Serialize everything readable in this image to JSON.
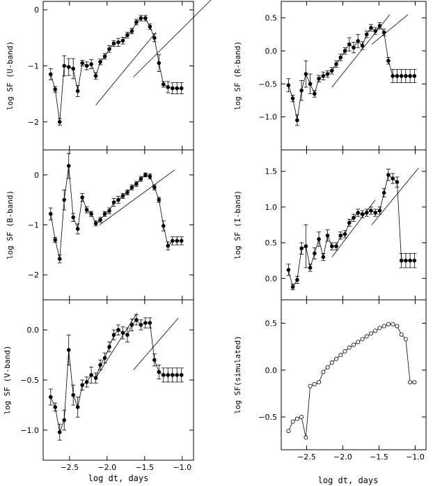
{
  "chart_data": [
    {
      "id": "u",
      "type": "line",
      "ylabel": "log SF (U-band)",
      "xlabel": "",
      "xlim": [
        -2.85,
        -0.85
      ],
      "ylim": [
        -2.5,
        0.15
      ],
      "xticks": [
        -2.5,
        -2.0,
        -1.5,
        -1.0
      ],
      "xticklabels": [],
      "yticks": [
        0,
        -1,
        -2
      ],
      "yticklabels": [
        "0",
        "−1",
        "−2"
      ],
      "marker": "filled",
      "x": [
        -2.75,
        -2.69,
        -2.63,
        -2.57,
        -2.51,
        -2.45,
        -2.39,
        -2.33,
        -2.27,
        -2.21,
        -2.15,
        -2.09,
        -2.03,
        -1.97,
        -1.91,
        -1.85,
        -1.79,
        -1.73,
        -1.67,
        -1.61,
        -1.55,
        -1.49,
        -1.43,
        -1.37,
        -1.31,
        -1.25,
        -1.19,
        -1.13,
        -1.07,
        -1.01
      ],
      "y": [
        -1.15,
        -1.42,
        -2.0,
        -1.0,
        -1.02,
        -1.05,
        -1.45,
        -0.95,
        -1.0,
        -0.97,
        -1.18,
        -0.93,
        -0.83,
        -0.7,
        -0.6,
        -0.58,
        -0.55,
        -0.45,
        -0.38,
        -0.22,
        -0.15,
        -0.15,
        -0.3,
        -0.5,
        -0.95,
        -1.33,
        -1.38,
        -1.4,
        -1.4,
        -1.4
      ],
      "yerr": [
        0.1,
        0.05,
        0.06,
        0.18,
        0.15,
        0.18,
        0.1,
        0.05,
        0.07,
        0.08,
        0.06,
        0.05,
        0.05,
        0.06,
        0.05,
        0.07,
        0.06,
        0.05,
        0.05,
        0.05,
        0.05,
        0.05,
        0.05,
        0.07,
        0.15,
        0.05,
        0.1,
        0.1,
        0.1,
        0.1
      ],
      "trends": [
        [
          -2.15,
          -1.35,
          -1.7,
          -0.4
        ],
        [
          -1.65,
          -0.6,
          -1.2,
          0.2
        ]
      ]
    },
    {
      "id": "b",
      "type": "line",
      "ylabel": "log SF (B-band)",
      "xlabel": "",
      "xlim": [
        -2.85,
        -0.85
      ],
      "ylim": [
        -2.5,
        0.5
      ],
      "xticks": [
        -2.5,
        -2.0,
        -1.5,
        -1.0
      ],
      "xticklabels": [],
      "yticks": [
        0,
        -1,
        -2
      ],
      "yticklabels": [
        "0",
        "−1",
        "−2"
      ],
      "marker": "filled",
      "x": [
        -2.75,
        -2.69,
        -2.63,
        -2.57,
        -2.51,
        -2.45,
        -2.39,
        -2.33,
        -2.27,
        -2.21,
        -2.15,
        -2.09,
        -2.03,
        -1.97,
        -1.91,
        -1.85,
        -1.79,
        -1.73,
        -1.67,
        -1.61,
        -1.55,
        -1.49,
        -1.43,
        -1.37,
        -1.31,
        -1.25,
        -1.19,
        -1.13,
        -1.07,
        -1.01
      ],
      "y": [
        -0.78,
        -1.3,
        -1.68,
        -0.5,
        0.18,
        -0.85,
        -1.08,
        -0.45,
        -0.7,
        -0.78,
        -0.97,
        -0.9,
        -0.78,
        -0.72,
        -0.55,
        -0.5,
        -0.42,
        -0.35,
        -0.25,
        -0.18,
        -0.08,
        0.0,
        -0.03,
        -0.25,
        -0.5,
        -1.02,
        -1.42,
        -1.32,
        -1.32,
        -1.32
      ],
      "yerr": [
        0.12,
        0.05,
        0.08,
        0.2,
        0.25,
        0.08,
        0.1,
        0.08,
        0.06,
        0.05,
        0.05,
        0.05,
        0.05,
        0.06,
        0.08,
        0.07,
        0.05,
        0.05,
        0.05,
        0.05,
        0.05,
        0.04,
        0.05,
        0.05,
        0.05,
        0.1,
        0.08,
        0.08,
        0.08,
        0.08
      ],
      "trends": [
        [
          -2.1,
          -1.1,
          -1.0,
          0.1
        ]
      ]
    },
    {
      "id": "v",
      "type": "line",
      "ylabel": "log SF (V-band)",
      "xlabel": "log dt, days",
      "xlim": [
        -2.85,
        -0.85
      ],
      "ylim": [
        -1.3,
        0.3
      ],
      "xticks": [
        -2.5,
        -2.0,
        -1.5,
        -1.0
      ],
      "xticklabels": [
        "−2.5",
        "−2.0",
        "−1.5",
        "−1.0"
      ],
      "yticks": [
        0,
        -0.5,
        -1.0
      ],
      "yticklabels": [
        "0.0",
        "−0.5",
        "−1.0"
      ],
      "marker": "filled",
      "x": [
        -2.75,
        -2.69,
        -2.63,
        -2.57,
        -2.51,
        -2.45,
        -2.39,
        -2.33,
        -2.27,
        -2.21,
        -2.15,
        -2.09,
        -2.03,
        -1.97,
        -1.91,
        -1.85,
        -1.79,
        -1.73,
        -1.67,
        -1.61,
        -1.55,
        -1.49,
        -1.43,
        -1.37,
        -1.31,
        -1.25,
        -1.19,
        -1.13,
        -1.07,
        -1.01
      ],
      "y": [
        -0.67,
        -0.77,
        -1.02,
        -0.9,
        -0.2,
        -0.65,
        -0.77,
        -0.55,
        -0.52,
        -0.45,
        -0.48,
        -0.35,
        -0.28,
        -0.17,
        -0.05,
        0.0,
        -0.03,
        -0.05,
        0.05,
        0.1,
        0.05,
        0.07,
        0.07,
        -0.3,
        -0.42,
        -0.45,
        -0.45,
        -0.45,
        -0.45,
        -0.45
      ],
      "yerr": [
        0.08,
        0.04,
        0.08,
        0.1,
        0.15,
        0.1,
        0.1,
        0.05,
        0.05,
        0.08,
        0.05,
        0.05,
        0.05,
        0.05,
        0.05,
        0.05,
        0.06,
        0.07,
        0.06,
        0.05,
        0.05,
        0.05,
        0.05,
        0.06,
        0.07,
        0.07,
        0.07,
        0.07,
        0.07,
        0.07
      ],
      "trends": [
        [
          -2.15,
          -1.6,
          -0.48,
          0.17
        ],
        [
          -1.65,
          -1.05,
          -0.4,
          0.12
        ]
      ]
    },
    {
      "id": "r",
      "type": "line",
      "ylabel": "log SF (R-band)",
      "xlabel": "",
      "xlim": [
        -2.85,
        -0.85
      ],
      "ylim": [
        -1.5,
        0.75
      ],
      "xticks": [
        -2.5,
        -2.0,
        -1.5,
        -1.0
      ],
      "xticklabels": [],
      "yticks": [
        0.5,
        0,
        -0.5,
        -1.0
      ],
      "yticklabels": [
        "0.5",
        "0.0",
        "−0.5",
        "−1.0"
      ],
      "marker": "filled",
      "x": [
        -2.75,
        -2.69,
        -2.63,
        -2.57,
        -2.51,
        -2.45,
        -2.39,
        -2.33,
        -2.27,
        -2.21,
        -2.15,
        -2.09,
        -2.03,
        -1.97,
        -1.91,
        -1.85,
        -1.79,
        -1.73,
        -1.67,
        -1.61,
        -1.55,
        -1.49,
        -1.43,
        -1.37,
        -1.31,
        -1.25,
        -1.19,
        -1.13,
        -1.07,
        -1.01
      ],
      "y": [
        -0.52,
        -0.72,
        -1.05,
        -0.6,
        -0.35,
        -0.5,
        -0.65,
        -0.42,
        -0.38,
        -0.35,
        -0.3,
        -0.2,
        -0.1,
        0.0,
        0.1,
        0.05,
        0.15,
        0.08,
        0.25,
        0.35,
        0.3,
        0.38,
        0.28,
        -0.15,
        -0.38,
        -0.38,
        -0.38,
        -0.38,
        -0.38,
        -0.38
      ],
      "yerr": [
        0.1,
        0.05,
        0.08,
        0.15,
        0.2,
        0.15,
        0.05,
        0.05,
        0.06,
        0.05,
        0.05,
        0.05,
        0.05,
        0.05,
        0.1,
        0.08,
        0.1,
        0.06,
        0.05,
        0.05,
        0.05,
        0.05,
        0.05,
        0.05,
        0.1,
        0.1,
        0.1,
        0.1,
        0.1,
        0.1
      ],
      "trends": [
        [
          -2.15,
          -1.35,
          -0.55,
          0.55
        ],
        [
          -1.6,
          -1.1,
          0.1,
          0.55
        ]
      ]
    },
    {
      "id": "i",
      "type": "line",
      "ylabel": "log SF (I-band)",
      "xlabel": "",
      "xlim": [
        -2.85,
        -0.85
      ],
      "ylim": [
        -0.3,
        1.8
      ],
      "xticks": [
        -2.5,
        -2.0,
        -1.5,
        -1.0
      ],
      "xticklabels": [],
      "yticks": [
        1.5,
        1.0,
        0.5,
        0.0
      ],
      "yticklabels": [
        "1.5",
        "1.0",
        "0.5",
        "0.0"
      ],
      "marker": "filled",
      "x": [
        -2.75,
        -2.69,
        -2.63,
        -2.57,
        -2.51,
        -2.45,
        -2.39,
        -2.33,
        -2.27,
        -2.21,
        -2.15,
        -2.09,
        -2.03,
        -1.97,
        -1.91,
        -1.85,
        -1.79,
        -1.73,
        -1.67,
        -1.61,
        -1.55,
        -1.49,
        -1.43,
        -1.37,
        -1.31,
        -1.25,
        -1.19,
        -1.13,
        -1.07,
        -1.01
      ],
      "y": [
        0.12,
        -0.12,
        -0.02,
        0.42,
        0.45,
        0.15,
        0.35,
        0.55,
        0.3,
        0.6,
        0.45,
        0.45,
        0.6,
        0.62,
        0.78,
        0.85,
        0.92,
        0.9,
        0.92,
        0.95,
        0.92,
        0.95,
        1.2,
        1.45,
        1.4,
        1.35,
        0.25,
        0.25,
        0.25,
        0.25
      ],
      "yerr": [
        0.08,
        0.04,
        0.05,
        0.08,
        0.3,
        0.05,
        0.08,
        0.1,
        0.05,
        0.08,
        0.05,
        0.05,
        0.05,
        0.05,
        0.05,
        0.05,
        0.05,
        0.05,
        0.05,
        0.05,
        0.05,
        0.05,
        0.06,
        0.08,
        0.07,
        0.07,
        0.1,
        0.1,
        0.1,
        0.1
      ],
      "trends": [
        [
          -2.15,
          -1.55,
          0.3,
          1.1
        ],
        [
          -1.6,
          -0.95,
          0.75,
          1.55
        ]
      ]
    },
    {
      "id": "sim",
      "type": "line",
      "ylabel": "log SF(simulated)",
      "xlabel": "log dt, days",
      "xlim": [
        -2.85,
        -0.85
      ],
      "ylim": [
        -0.85,
        0.75
      ],
      "xticks": [
        -2.5,
        -2.0,
        -1.5,
        -1.0
      ],
      "xticklabels": [
        "−2.5",
        "−2.0",
        "−1.5",
        "−1.0"
      ],
      "yticks": [
        0.5,
        0.0,
        -0.5
      ],
      "yticklabels": [
        "0.5",
        "0.0",
        "−0.5"
      ],
      "marker": "open",
      "x": [
        -2.75,
        -2.69,
        -2.63,
        -2.57,
        -2.51,
        -2.45,
        -2.39,
        -2.33,
        -2.27,
        -2.21,
        -2.15,
        -2.09,
        -2.03,
        -1.97,
        -1.91,
        -1.85,
        -1.79,
        -1.73,
        -1.67,
        -1.61,
        -1.55,
        -1.49,
        -1.43,
        -1.37,
        -1.31,
        -1.25,
        -1.19,
        -1.13,
        -1.07,
        -1.01
      ],
      "y": [
        -0.65,
        -0.55,
        -0.52,
        -0.5,
        -0.72,
        -0.17,
        -0.15,
        -0.13,
        -0.02,
        0.03,
        0.08,
        0.12,
        0.16,
        0.2,
        0.24,
        0.27,
        0.3,
        0.33,
        0.36,
        0.39,
        0.42,
        0.45,
        0.47,
        0.49,
        0.49,
        0.47,
        0.38,
        0.33,
        -0.13,
        -0.13
      ],
      "yerr": [],
      "trends": []
    }
  ]
}
